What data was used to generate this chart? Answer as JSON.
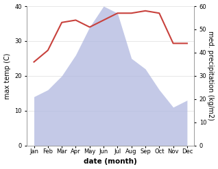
{
  "months": [
    "Jan",
    "Feb",
    "Mar",
    "Apr",
    "May",
    "Jun",
    "Jul",
    "Aug",
    "Sep",
    "Oct",
    "Nov",
    "Dec"
  ],
  "month_indices": [
    0,
    1,
    2,
    3,
    4,
    5,
    6,
    7,
    8,
    9,
    10,
    11
  ],
  "max_temp": [
    14,
    16,
    20,
    26,
    34,
    40,
    38,
    25,
    22,
    16,
    11,
    13
  ],
  "precipitation": [
    36,
    41,
    53,
    54,
    51,
    54,
    57,
    57,
    58,
    57,
    44,
    44
  ],
  "temp_color": "#c8413c",
  "fill_color": "#b0b8e0",
  "fill_alpha": 0.75,
  "temp_ylim": [
    0,
    40
  ],
  "precip_ylim": [
    0,
    60
  ],
  "xlabel": "date (month)",
  "ylabel_left": "max temp (C)",
  "ylabel_right": "med. precipitation (kg/m2)",
  "grid_color": "#dddddd",
  "tick_fontsize": 6.0,
  "label_fontsize": 7.0,
  "xlabel_fontsize": 7.5
}
